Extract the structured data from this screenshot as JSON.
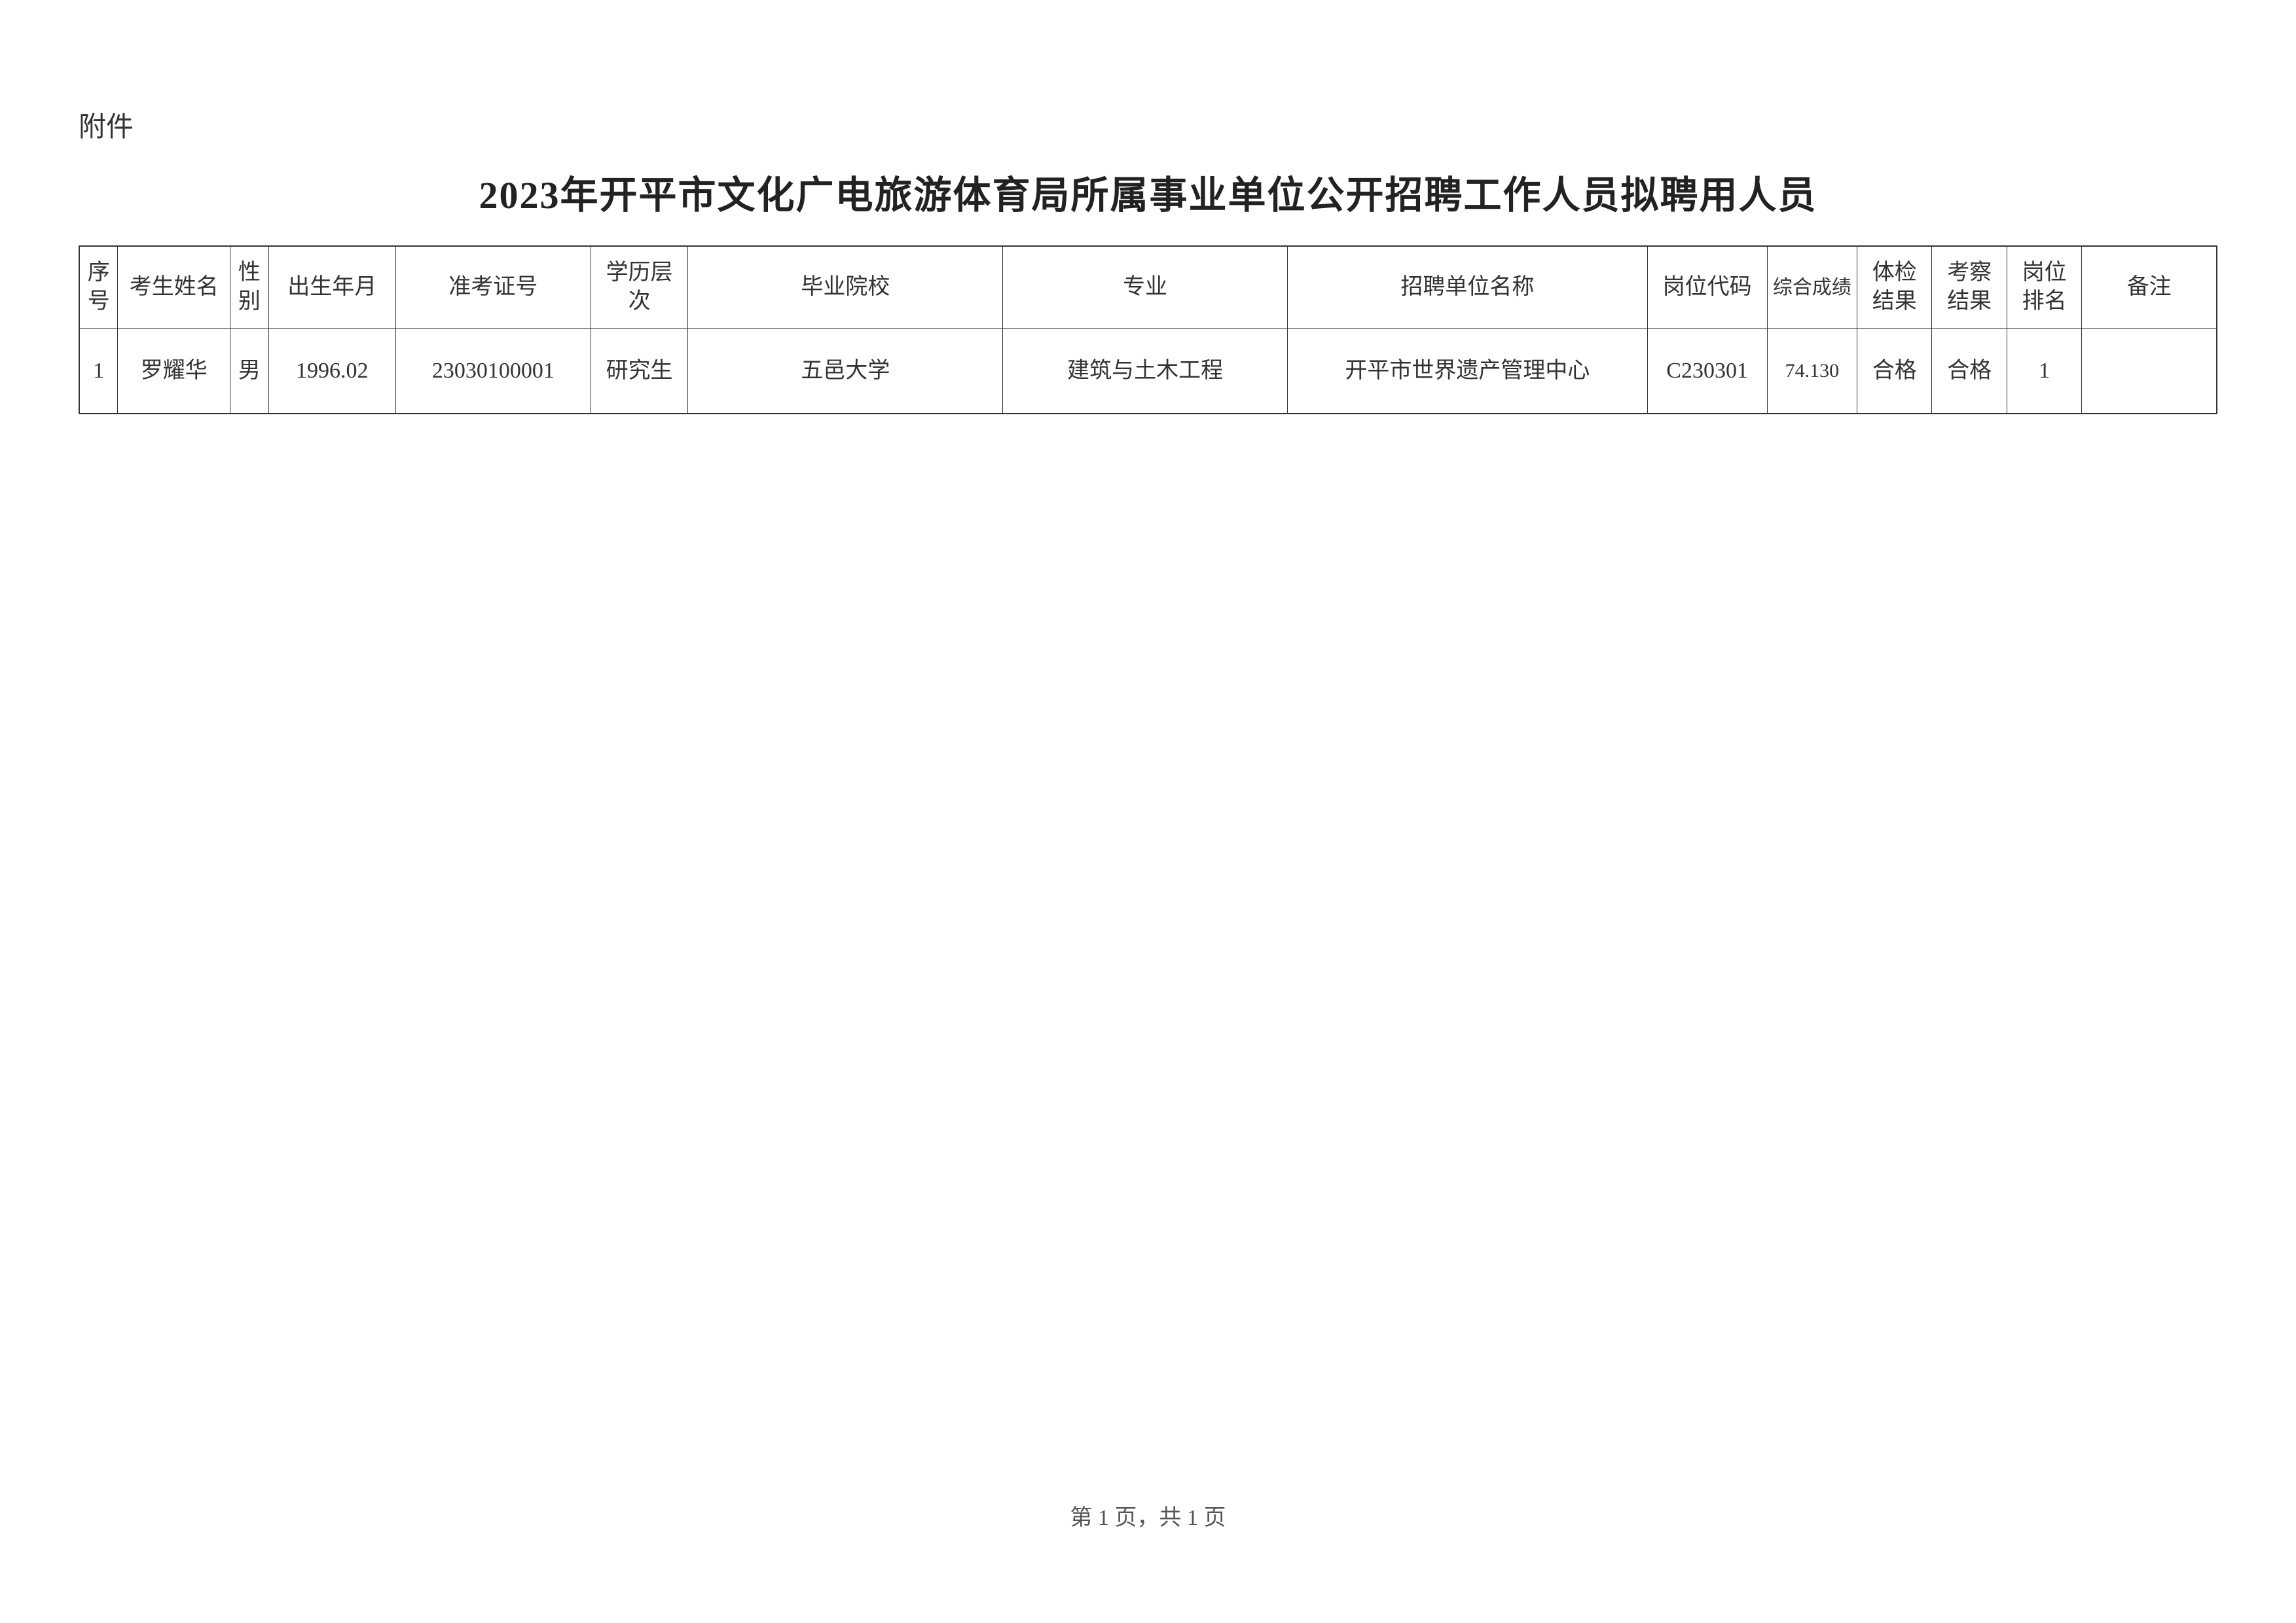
{
  "attachment_label": "附件",
  "title": "2023年开平市文化广电旅游体育局所属事业单位公开招聘工作人员拟聘用人员",
  "table": {
    "columns": [
      "序号",
      "考生姓名",
      "性别",
      "出生年月",
      "准考证号",
      "学历层次",
      "毕业院校",
      "专业",
      "招聘单位名称",
      "岗位代码",
      "综合成绩",
      "体检结果",
      "考察结果",
      "岗位排名",
      "备注"
    ],
    "rows": [
      {
        "seq": "1",
        "name": "罗耀华",
        "gender": "男",
        "birth": "1996.02",
        "exam_no": "23030100001",
        "edu": "研究生",
        "school": "五邑大学",
        "major": "建筑与土木工程",
        "unit": "开平市世界遗产管理中心",
        "post_code": "C230301",
        "score": "74.130",
        "physical": "合格",
        "inspect": "合格",
        "rank": "1",
        "remark": ""
      }
    ]
  },
  "footer": "第 1 页，共 1 页",
  "colors": {
    "background": "#ffffff",
    "text": "#333333",
    "border": "#333333"
  },
  "typography": {
    "title_fontsize": 58,
    "label_fontsize": 42,
    "cell_fontsize": 34,
    "footer_fontsize": 34,
    "font_family": "SimSun"
  }
}
